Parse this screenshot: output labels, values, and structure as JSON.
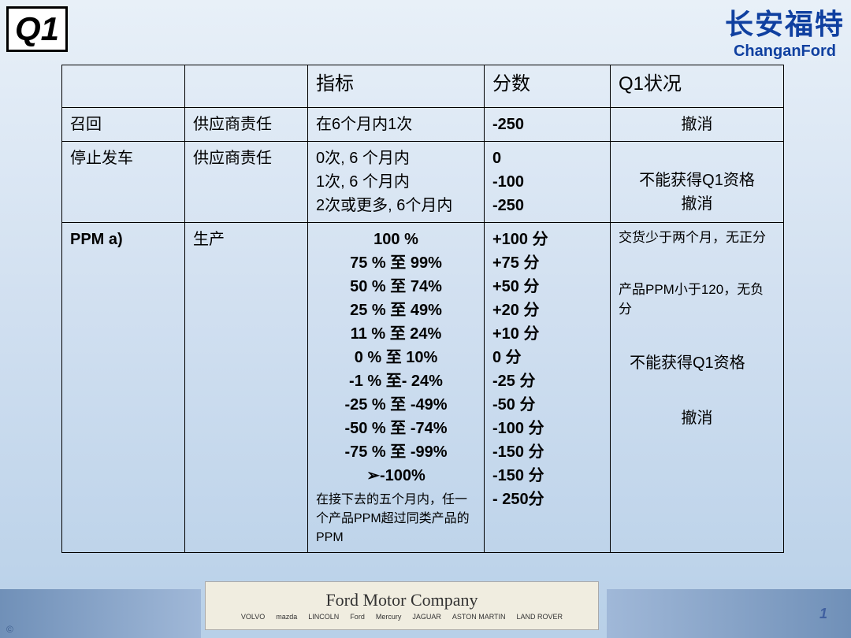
{
  "logo": "Q1",
  "brand": {
    "cn": "长安福特",
    "en": "ChanganFord"
  },
  "headers": {
    "c3": "指标",
    "c4": "分数",
    "c5": "Q1状况"
  },
  "rows": [
    {
      "c1": "召回",
      "c2": "供应商责任",
      "c3": "在6个月内1次",
      "c4": "-250",
      "c5": "撤消",
      "c1_bold": false,
      "c3_bold": false,
      "c4_bold": true,
      "c5_center": true
    },
    {
      "c1": "停止发车",
      "c2": "供应商责任",
      "c3_lines": [
        "0次, 6 个月内",
        "1次, 6 个月内",
        "2次或更多, 6个月内"
      ],
      "c4_lines": [
        "0",
        "-100",
        "-250"
      ],
      "c5_lines": [
        "不能获得Q1资格",
        "撤消"
      ],
      "c4_bold": true,
      "c5_center": true
    },
    {
      "c1": "PPM a)",
      "c2": "生产",
      "c3_lines": [
        "100 %",
        "75 % 至 99%",
        "50 % 至 74%",
        "25 % 至 49%",
        "11 % 至 24%",
        "0 % 至 10%",
        "-1 % 至- 24%",
        "-25 % 至 -49%",
        "-50 % 至 -74%",
        "-75 % 至 -99%",
        "➢-100%"
      ],
      "c3_note": "在接下去的五个月内，任一个产品PPM超过同类产品的PPM",
      "c4_lines": [
        "+100 分",
        "+75 分",
        "+50 分",
        "+20 分",
        "+10 分",
        "0 分",
        "-25 分",
        "-50 分",
        "-100 分",
        "-150 分",
        "-150 分",
        "- 250分"
      ],
      "c5_blocks": [
        {
          "text": "交货少于两个月，无正分",
          "style": "small"
        },
        {
          "text": "产品PPM小于120，无负分",
          "style": "small gap"
        },
        {
          "text": "不能获得Q1资格",
          "style": "gap indent"
        },
        {
          "text": "撤消",
          "style": "gap center"
        }
      ],
      "c1_bold": true,
      "c3_bold": true,
      "c3_center": true,
      "c4_bold": true
    }
  ],
  "footer": {
    "script": "Ford Motor Company",
    "brands": [
      "VOLVO",
      "mazda",
      "LINCOLN",
      "Ford",
      "Mercury",
      "JAGUAR",
      "ASTON MARTIN",
      "LAND ROVER"
    ],
    "page": "1",
    "copyright": "©"
  }
}
